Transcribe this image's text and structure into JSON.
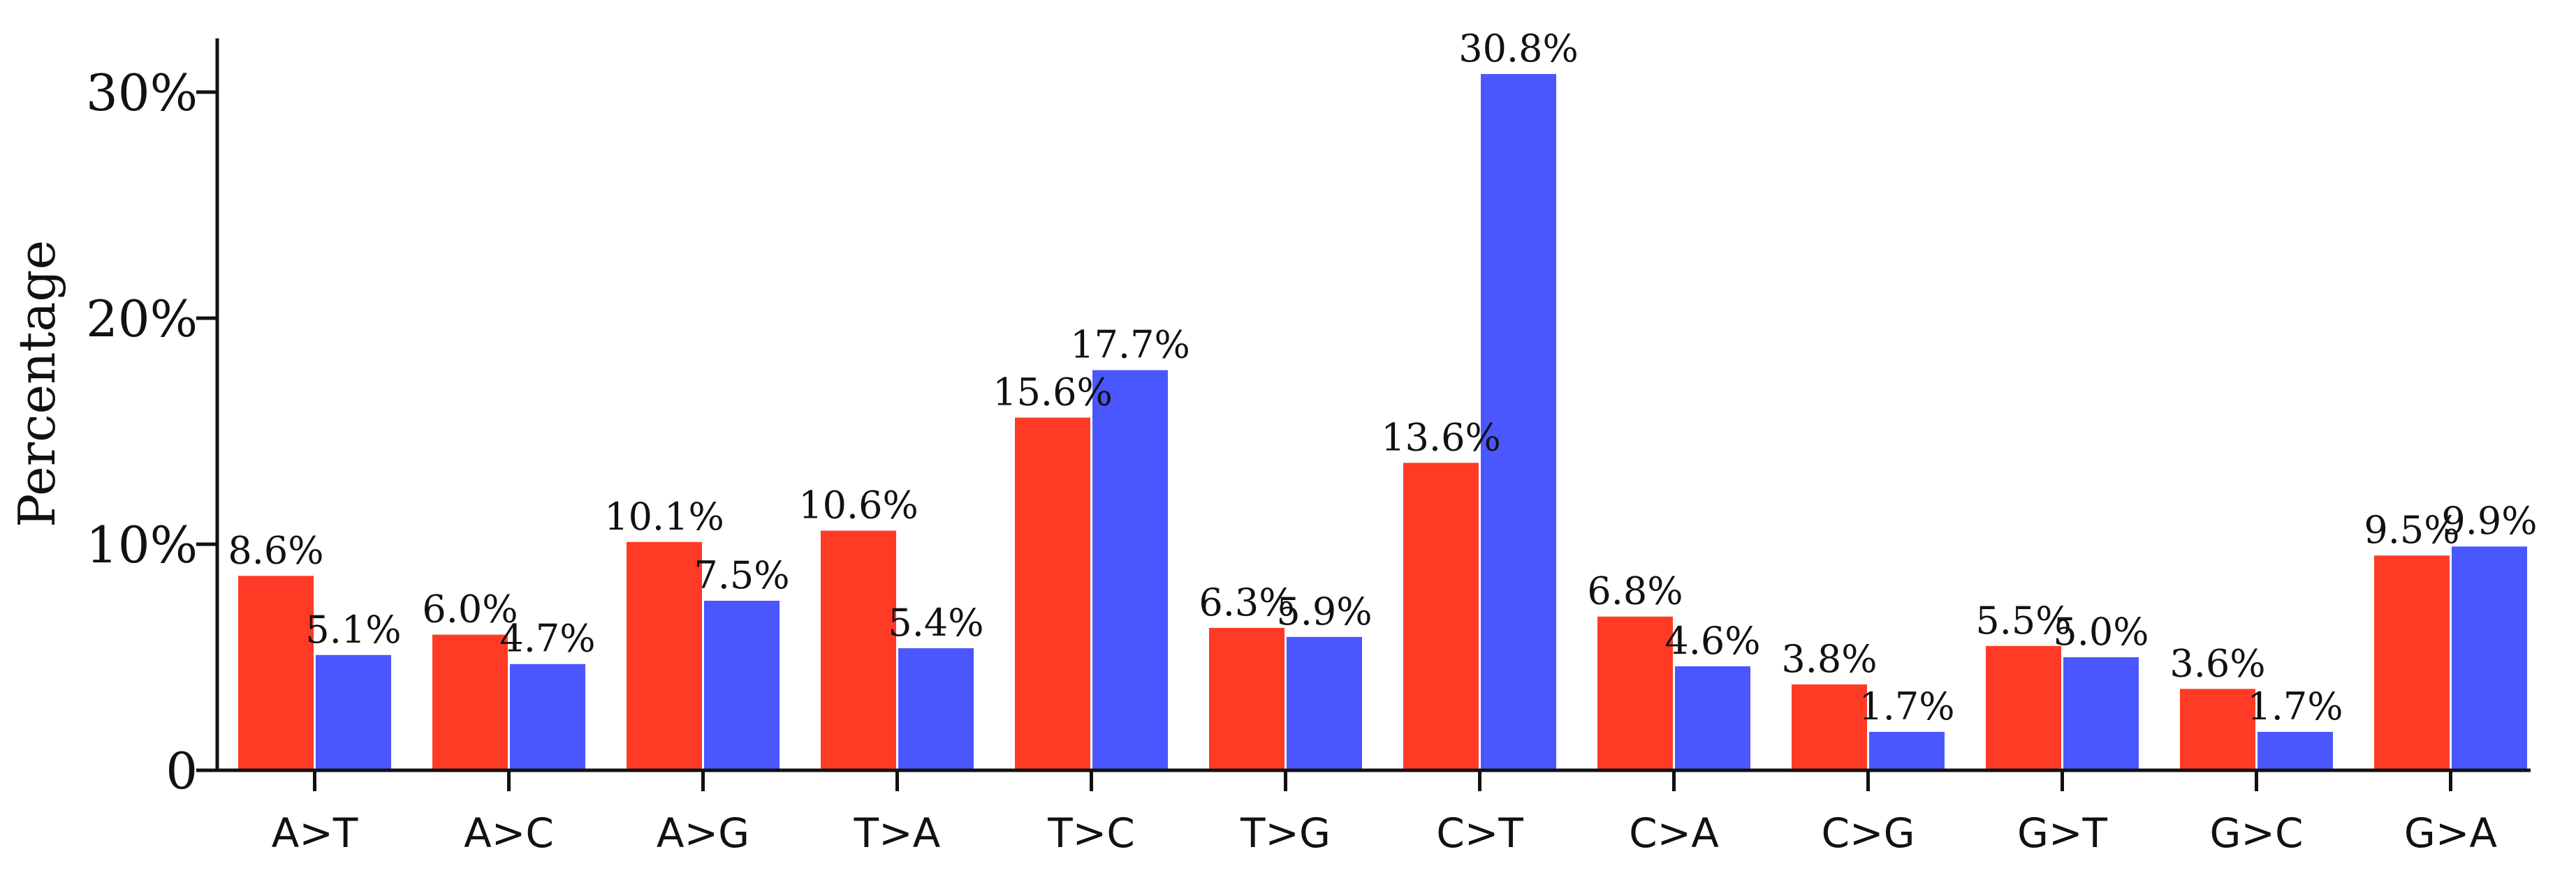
{
  "chart_data": {
    "type": "bar",
    "title": "",
    "xlabel": "",
    "ylabel": "Percentage",
    "ylim": [
      0,
      32.5
    ],
    "grid": false,
    "legend": "none",
    "yticks": [
      {
        "value": 0,
        "label": "0"
      },
      {
        "value": 10,
        "label": "10%"
      },
      {
        "value": 20,
        "label": "20%"
      },
      {
        "value": 30,
        "label": "30%"
      }
    ],
    "categories": [
      "A>T",
      "A>C",
      "A>G",
      "T>A",
      "T>C",
      "T>G",
      "C>T",
      "C>A",
      "C>G",
      "G>T",
      "G>C",
      "G>A"
    ],
    "series": [
      {
        "name": "series-red",
        "color": "#ff3b26",
        "values": [
          8.6,
          6.0,
          10.1,
          10.6,
          15.6,
          6.3,
          13.6,
          6.8,
          3.8,
          5.5,
          3.6,
          9.5
        ],
        "labels": [
          "8.6%",
          "6.0%",
          "10.1%",
          "10.6%",
          "15.6%",
          "6.3%",
          "13.6%",
          "6.8%",
          "3.8%",
          "5.5%",
          "3.6%",
          "9.5%"
        ]
      },
      {
        "name": "series-blue",
        "color": "#4a57ff",
        "values": [
          5.1,
          4.7,
          7.5,
          5.4,
          17.7,
          5.9,
          30.8,
          4.6,
          1.7,
          5.0,
          1.7,
          9.9
        ],
        "labels": [
          "5.1%",
          "4.7%",
          "7.5%",
          "5.4%",
          "17.7%",
          "5.9%",
          "30.8%",
          "4.6%",
          "1.7%",
          "5.0%",
          "1.7%",
          "9.9%"
        ]
      }
    ]
  }
}
